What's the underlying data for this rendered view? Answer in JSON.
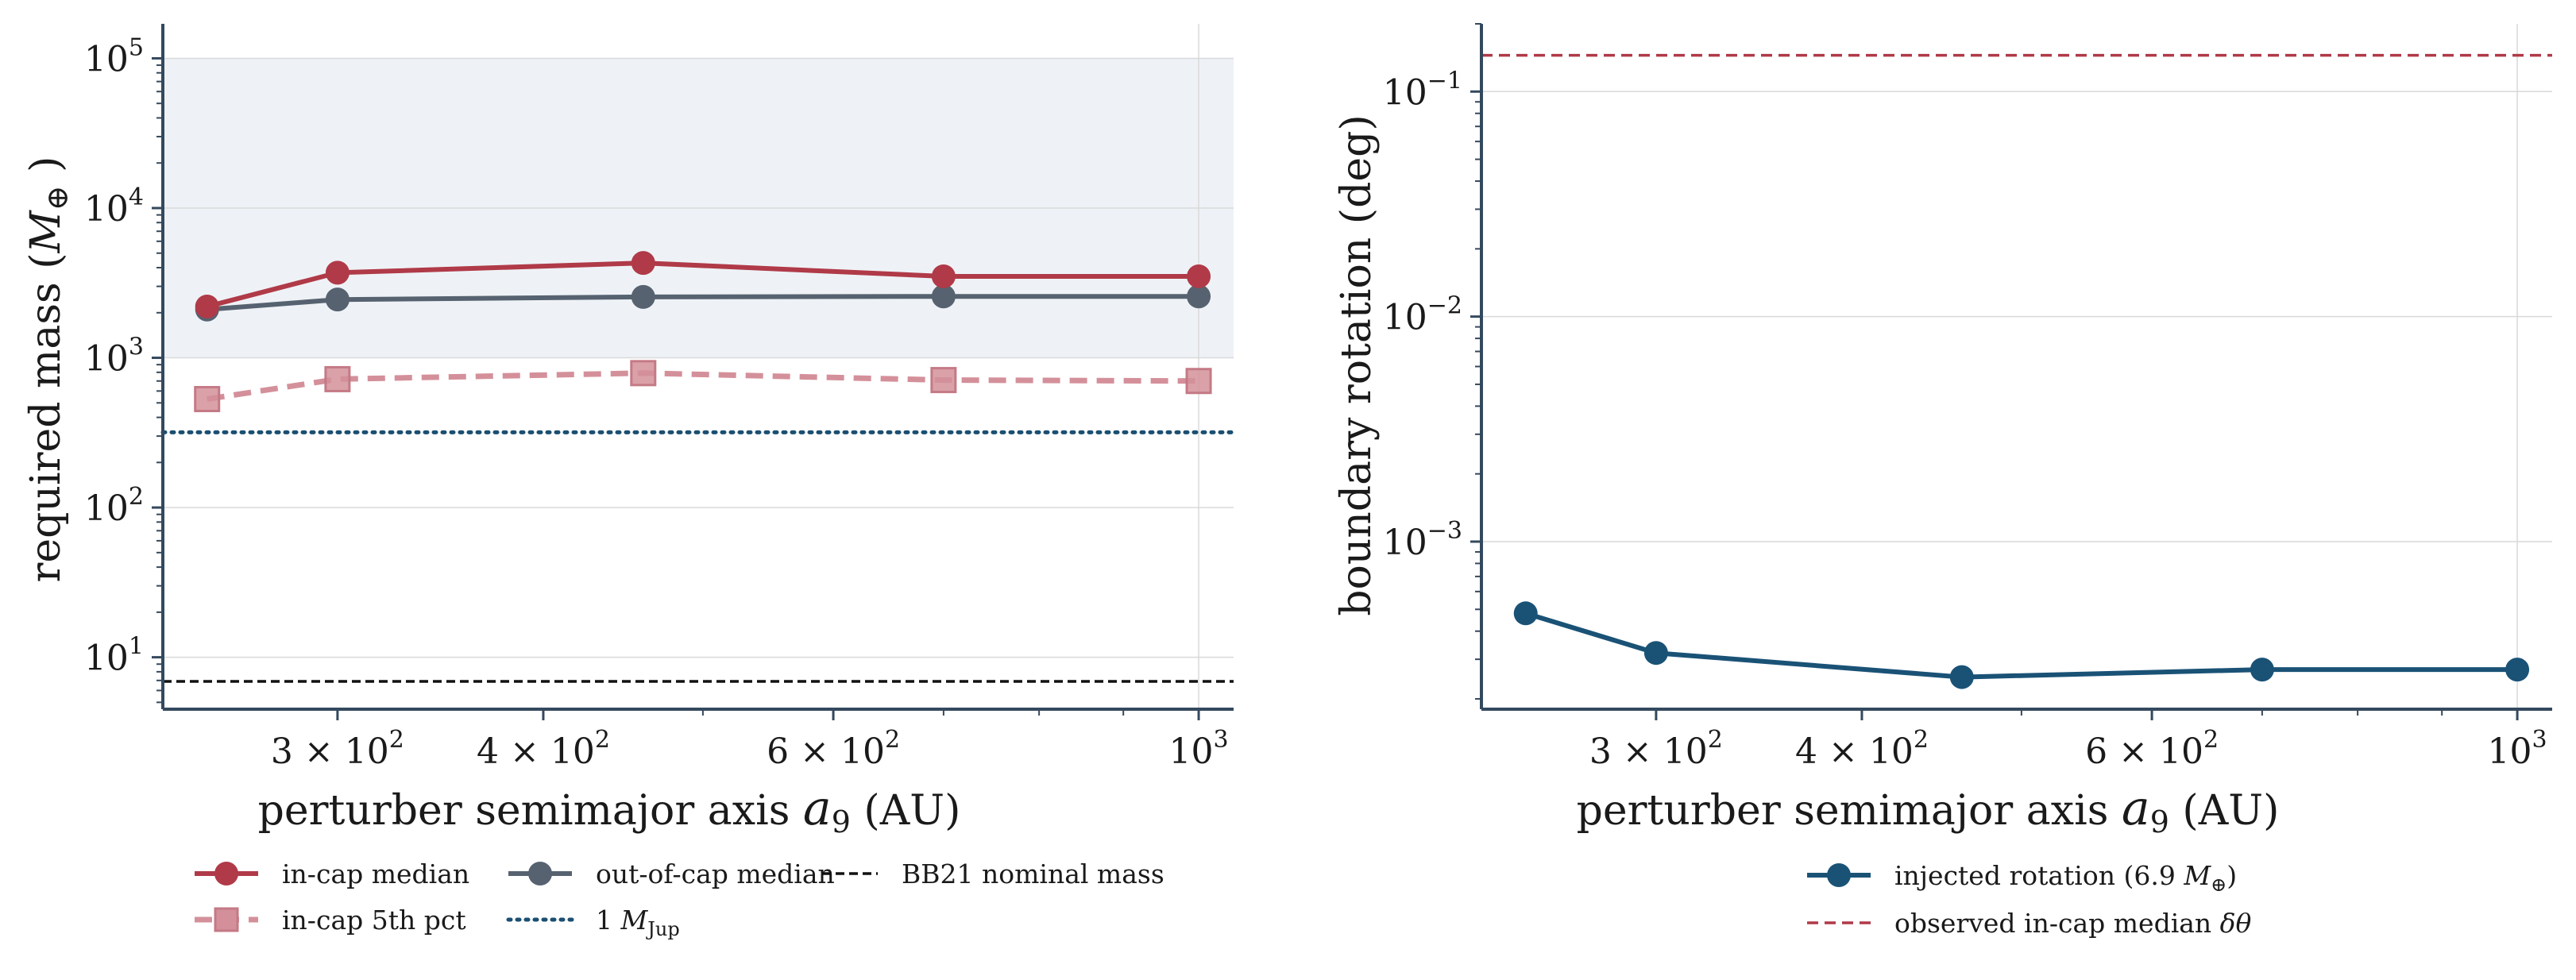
{
  "colors": {
    "in_cap": "#b03a48",
    "in_cap_5th": "#d4909a",
    "out_cap": "#566270",
    "jup": "#1b4f72",
    "bb21": "#111111",
    "injected": "#1a5276",
    "observed": "#b03a48",
    "band": "#eef2f6",
    "axis": "#34495e",
    "grid": "#d9d9d9"
  },
  "chart_data": [
    {
      "type": "line",
      "xscale": "log",
      "yscale": "log",
      "xlim": [
        235,
        1050
      ],
      "ylim": [
        4.5,
        170000
      ],
      "xlabel_prefix": "perturber semimajor axis ",
      "xlabel_var": "a",
      "xlabel_sub": "9",
      "xlabel_suffix": " (AU)",
      "ylabel_prefix": "required mass (",
      "ylabel_var": "M",
      "ylabel_sub": "⊕",
      "ylabel_suffix": " )",
      "xticks": [
        {
          "value": 300,
          "base": "3 × 10",
          "exp": "2"
        },
        {
          "value": 400,
          "base": "4 × 10",
          "exp": "2"
        },
        {
          "value": 600,
          "base": "6 × 10",
          "exp": "2"
        },
        {
          "value": 1000,
          "base": "10",
          "exp": "3"
        }
      ],
      "yticks": [
        {
          "value": 10,
          "base": "10",
          "exp": "1"
        },
        {
          "value": 100,
          "base": "10",
          "exp": "2"
        },
        {
          "value": 1000,
          "base": "10",
          "exp": "3"
        },
        {
          "value": 10000,
          "base": "10",
          "exp": "4"
        },
        {
          "value": 100000,
          "base": "10",
          "exp": "5"
        }
      ],
      "band": [
        1000,
        100000
      ],
      "grid": true,
      "series": [
        {
          "key": "in_cap_median",
          "name": "in-cap median",
          "color_key": "in_cap",
          "marker": "circle",
          "dash": "solid",
          "x": [
            250,
            300,
            460,
            700,
            1000
          ],
          "y": [
            2200,
            3700,
            4300,
            3500,
            3500
          ]
        },
        {
          "key": "in_cap_5th",
          "name": "in-cap 5th pct",
          "color_key": "in_cap_5th",
          "marker": "square",
          "dash": "dashed",
          "x": [
            250,
            300,
            460,
            700,
            1000
          ],
          "y": [
            530,
            720,
            790,
            710,
            700
          ]
        },
        {
          "key": "out_cap_median",
          "name": "out-of-cap median",
          "color_key": "out_cap",
          "marker": "circle",
          "dash": "solid",
          "x": [
            250,
            300,
            460,
            700,
            1000
          ],
          "y": [
            2100,
            2450,
            2550,
            2570,
            2570
          ]
        }
      ],
      "hlines": [
        {
          "key": "jup",
          "name": "1 ",
          "name_var": "M",
          "name_sub": "Jup",
          "color_key": "jup",
          "style": "dotted",
          "y": 318
        },
        {
          "key": "bb21",
          "name": "BB21 nominal mass",
          "color_key": "bb21",
          "style": "dashed",
          "y": 6.9
        }
      ]
    },
    {
      "type": "line",
      "xscale": "log",
      "yscale": "log",
      "xlim": [
        235,
        1050
      ],
      "ylim": [
        0.00018,
        0.2
      ],
      "xlabel_prefix": "perturber semimajor axis ",
      "xlabel_var": "a",
      "xlabel_sub": "9",
      "xlabel_suffix": " (AU)",
      "ylabel": "boundary rotation (deg)",
      "xticks": [
        {
          "value": 300,
          "base": "3 × 10",
          "exp": "2"
        },
        {
          "value": 400,
          "base": "4 × 10",
          "exp": "2"
        },
        {
          "value": 600,
          "base": "6 × 10",
          "exp": "2"
        },
        {
          "value": 1000,
          "base": "10",
          "exp": "3"
        }
      ],
      "yticks": [
        {
          "value": 0.001,
          "base": "10",
          "exp": "−3"
        },
        {
          "value": 0.01,
          "base": "10",
          "exp": "−2"
        },
        {
          "value": 0.1,
          "base": "10",
          "exp": "−1"
        }
      ],
      "grid": true,
      "series": [
        {
          "key": "injected",
          "name": "injected rotation (6.9 ",
          "name_var": "M",
          "name_sub": "⊕",
          "name_suffix": ")",
          "color_key": "injected",
          "marker": "circle",
          "dash": "solid",
          "x": [
            250,
            300,
            460,
            700,
            1000
          ],
          "y": [
            0.00048,
            0.00032,
            0.00025,
            0.00027,
            0.00027
          ]
        }
      ],
      "hlines": [
        {
          "key": "observed",
          "name": "observed in-cap median ",
          "name_var": "δθ",
          "color_key": "observed",
          "style": "dashed",
          "y": 0.145
        }
      ]
    }
  ]
}
